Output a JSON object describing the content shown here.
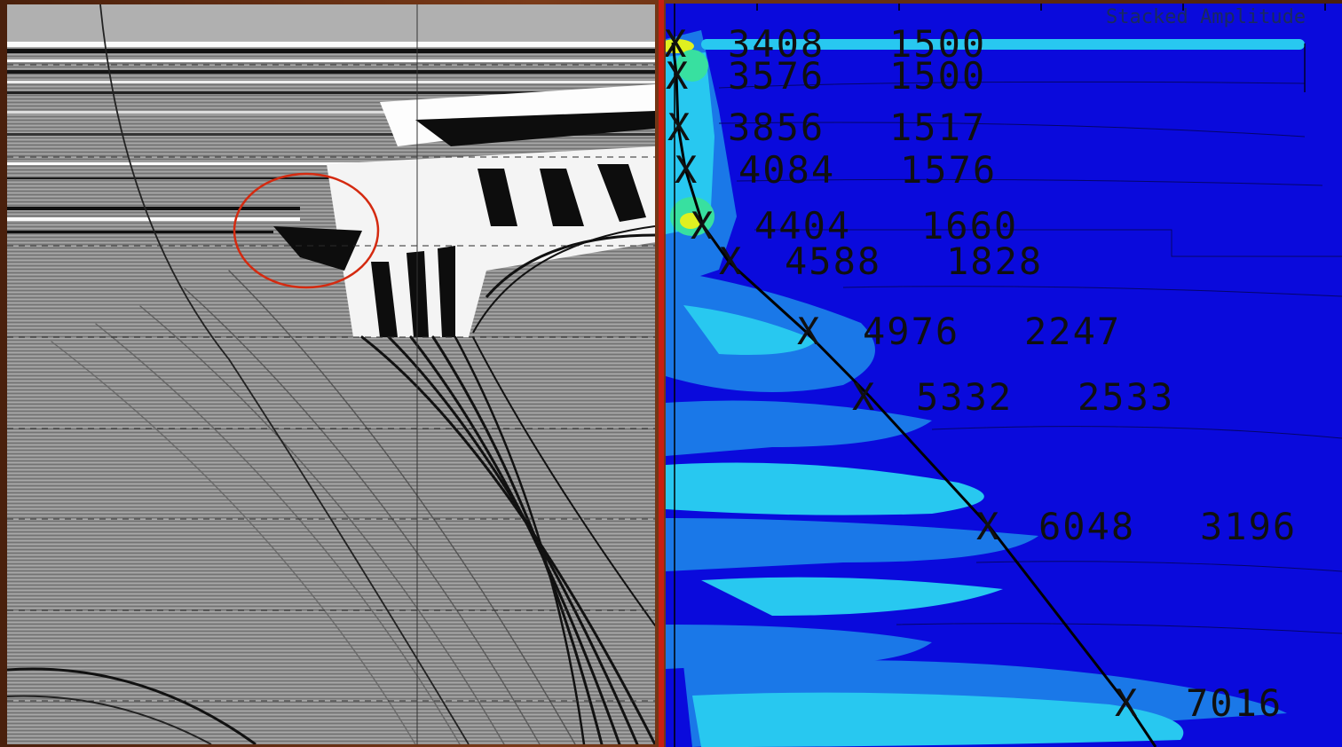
{
  "right_panel": {
    "title": "Stacked Amplitude",
    "picks": [
      {
        "time": "3408",
        "velocity": "1500"
      },
      {
        "time": "3576",
        "velocity": "1500"
      },
      {
        "time": "3856",
        "velocity": "1517"
      },
      {
        "time": "4084",
        "velocity": "1576"
      },
      {
        "time": "4404",
        "velocity": "1660"
      },
      {
        "time": "4588",
        "velocity": "1828"
      },
      {
        "time": "4976",
        "velocity": "2247"
      },
      {
        "time": "5332",
        "velocity": "2533"
      },
      {
        "time": "6048",
        "velocity": "3196"
      },
      {
        "time": "7016",
        "velocity": ""
      }
    ],
    "pick_marker": "X"
  },
  "colors": {
    "seismic_background": "#8e8e8e",
    "highlight_circle": "#d42a10",
    "semblance_background": "#0a0adc",
    "semblance_low": "#1a78e8",
    "semblance_mid": "#28c8f0",
    "semblance_high": "#e0f020",
    "divider": "#c81e10"
  }
}
